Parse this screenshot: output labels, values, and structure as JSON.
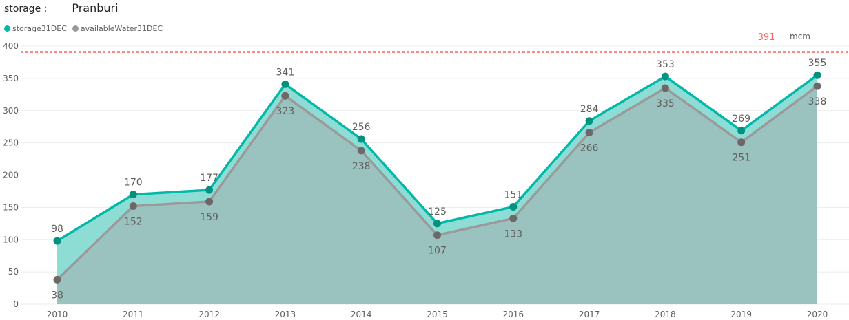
{
  "header": {
    "label": "storage :",
    "value": "Pranburi"
  },
  "chart_data": {
    "type": "area",
    "title": "",
    "xlabel": "",
    "ylabel": "",
    "x": [
      "2010",
      "2011",
      "2012",
      "2013",
      "2014",
      "2015",
      "2016",
      "2017",
      "2018",
      "2019",
      "2020"
    ],
    "ylim": [
      0,
      400
    ],
    "yticks": [
      "0",
      "50",
      "100",
      "150",
      "200",
      "250",
      "300",
      "350",
      "400"
    ],
    "grid": true,
    "legend_position": "top-left",
    "series": [
      {
        "name": "storage31DEC",
        "color": "#01B8AA",
        "marker_color": "#01927F",
        "fill": "#8EDDD5",
        "values": [
          98,
          170,
          177,
          341,
          256,
          125,
          151,
          284,
          353,
          269,
          355
        ],
        "labels": [
          "98",
          "170",
          "177",
          "341",
          "256",
          "125",
          "151",
          "284",
          "353",
          "269",
          "355"
        ]
      },
      {
        "name": "availableWater31DEC",
        "color": "#9A9A9A",
        "marker_color": "#6E6767",
        "fill": "#9AC3C0",
        "values": [
          38,
          152,
          159,
          323,
          238,
          107,
          133,
          266,
          335,
          251,
          338
        ],
        "labels": [
          "38",
          "152",
          "159",
          "323",
          "238",
          "107",
          "133",
          "266",
          "335",
          "251",
          "338"
        ]
      }
    ],
    "reference_line": {
      "value": 391,
      "label": "391",
      "unit": "mcm",
      "color": "#FD625E"
    }
  }
}
